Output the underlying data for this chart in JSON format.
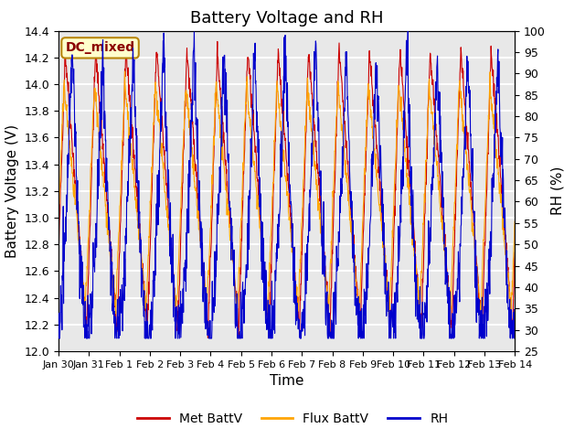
{
  "title": "Battery Voltage and RH",
  "xlabel": "Time",
  "ylabel_left": "Battery Voltage (V)",
  "ylabel_right": "RH (%)",
  "ylim_left": [
    12.0,
    14.4
  ],
  "ylim_right": [
    25,
    100
  ],
  "yticks_left": [
    12.0,
    12.2,
    12.4,
    12.6,
    12.8,
    13.0,
    13.2,
    13.4,
    13.6,
    13.8,
    14.0,
    14.2,
    14.4
  ],
  "yticks_right": [
    25,
    30,
    35,
    40,
    45,
    50,
    55,
    60,
    65,
    70,
    75,
    80,
    85,
    90,
    95,
    100
  ],
  "xtick_labels": [
    "Jan 30",
    "Jan 31",
    "Feb 1",
    "Feb 2",
    "Feb 3",
    "Feb 4",
    "Feb 5",
    "Feb 6",
    "Feb 7",
    "Feb 8",
    "Feb 9",
    "Feb 10",
    "Feb 11",
    "Feb 12",
    "Feb 13",
    "Feb 14"
  ],
  "annotation_text": "DC_mixed",
  "annotation_color": "#8B0000",
  "annotation_bg": "#FFFFCC",
  "annotation_border": "#B8860B",
  "met_battv_color": "#CC0000",
  "flux_battv_color": "#FFA500",
  "rh_color": "#0000CC",
  "background_color": "#E8E8E8",
  "grid_color": "#FFFFFF",
  "fig_bg": "#FFFFFF",
  "title_fontsize": 13,
  "label_fontsize": 11,
  "tick_fontsize": 9,
  "legend_fontsize": 10,
  "num_days": 15,
  "seed": 42
}
